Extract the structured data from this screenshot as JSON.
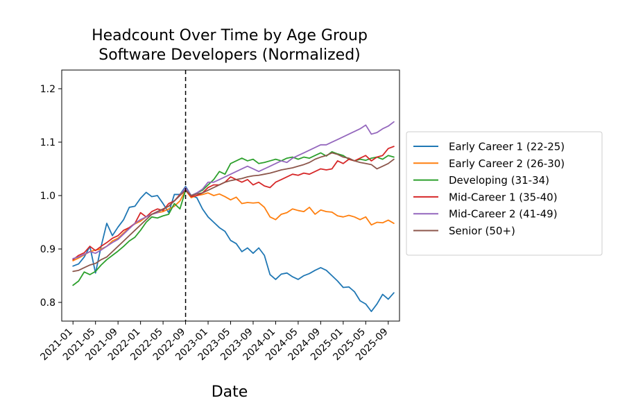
{
  "chart_data": {
    "type": "line",
    "title": "Headcount Over Time by Age Group",
    "subtitle": "Software Developers (Normalized)",
    "xlabel": "Date",
    "ylabel": "",
    "x_start": "2021-01",
    "xlim": [
      "2020-11",
      "2025-11"
    ],
    "ylim": [
      0.765,
      1.235
    ],
    "x_ticks": [
      "2021-01",
      "2021-05",
      "2021-09",
      "2022-01",
      "2022-05",
      "2022-09",
      "2023-01",
      "2023-05",
      "2023-09",
      "2024-01",
      "2024-05",
      "2024-09",
      "2025-01",
      "2025-05",
      "2025-09"
    ],
    "y_ticks": [
      0.8,
      0.9,
      1.0,
      1.1,
      1.2
    ],
    "y_tick_labels": [
      "0.8",
      "0.9",
      "1.0",
      "1.1",
      "1.2"
    ],
    "reference_line": {
      "x": "2022-09",
      "style": "dashed",
      "color": "#000000"
    },
    "grid": false,
    "legend_position": "outside-right",
    "series": [
      {
        "name": "Early Career 1 (22-25)",
        "color": "#1f77b4",
        "values": [
          0.868,
          0.872,
          0.885,
          0.905,
          0.855,
          0.905,
          0.948,
          0.925,
          0.941,
          0.955,
          0.978,
          0.98,
          0.995,
          1.006,
          0.998,
          1.0,
          0.985,
          0.968,
          1.002,
          1.002,
          1.017,
          1.0,
          0.996,
          0.975,
          0.96,
          0.95,
          0.94,
          0.933,
          0.916,
          0.91,
          0.895,
          0.902,
          0.892,
          0.902,
          0.888,
          0.852,
          0.843,
          0.853,
          0.855,
          0.848,
          0.843,
          0.85,
          0.854,
          0.86,
          0.865,
          0.86,
          0.85,
          0.84,
          0.828,
          0.829,
          0.82,
          0.803,
          0.797,
          0.783,
          0.797,
          0.815,
          0.806,
          0.818
        ]
      },
      {
        "name": "Early Career 2 (26-30)",
        "color": "#ff7f0e",
        "values": [
          0.878,
          0.883,
          0.889,
          0.895,
          0.898,
          0.9,
          0.905,
          0.915,
          0.92,
          0.93,
          0.94,
          0.947,
          0.952,
          0.96,
          0.965,
          0.968,
          0.97,
          0.975,
          0.98,
          0.99,
          1.01,
          0.996,
          1.0,
          1.002,
          1.005,
          1.0,
          1.003,
          0.998,
          0.992,
          0.997,
          0.985,
          0.987,
          0.986,
          0.987,
          0.978,
          0.96,
          0.955,
          0.965,
          0.968,
          0.975,
          0.972,
          0.97,
          0.978,
          0.965,
          0.973,
          0.97,
          0.969,
          0.962,
          0.96,
          0.963,
          0.96,
          0.955,
          0.96,
          0.945,
          0.95,
          0.949,
          0.954,
          0.948
        ]
      },
      {
        "name": "Developing (31-34)",
        "color": "#2ca02c",
        "values": [
          0.832,
          0.84,
          0.857,
          0.852,
          0.858,
          0.87,
          0.88,
          0.888,
          0.896,
          0.905,
          0.915,
          0.922,
          0.935,
          0.95,
          0.96,
          0.958,
          0.962,
          0.965,
          0.985,
          0.975,
          1.01,
          1.0,
          1.005,
          1.01,
          1.02,
          1.03,
          1.045,
          1.04,
          1.06,
          1.065,
          1.07,
          1.065,
          1.068,
          1.06,
          1.062,
          1.065,
          1.068,
          1.065,
          1.07,
          1.072,
          1.068,
          1.072,
          1.07,
          1.075,
          1.08,
          1.074,
          1.082,
          1.078,
          1.075,
          1.068,
          1.065,
          1.068,
          1.066,
          1.07,
          1.072,
          1.068,
          1.075,
          1.072
        ]
      },
      {
        "name": "Mid-Career 1 (35-40)",
        "color": "#d62728",
        "values": [
          0.88,
          0.888,
          0.893,
          0.905,
          0.897,
          0.905,
          0.912,
          0.92,
          0.925,
          0.935,
          0.94,
          0.948,
          0.968,
          0.96,
          0.97,
          0.975,
          0.972,
          0.985,
          0.99,
          1.002,
          1.01,
          0.998,
          1.0,
          1.005,
          1.015,
          1.02,
          1.02,
          1.025,
          1.035,
          1.03,
          1.025,
          1.03,
          1.02,
          1.025,
          1.018,
          1.015,
          1.025,
          1.03,
          1.035,
          1.04,
          1.038,
          1.042,
          1.04,
          1.045,
          1.05,
          1.048,
          1.05,
          1.065,
          1.06,
          1.068,
          1.065,
          1.07,
          1.075,
          1.065,
          1.072,
          1.075,
          1.088,
          1.092
        ]
      },
      {
        "name": "Mid-Career 2 (41-49)",
        "color": "#9467bd",
        "values": [
          0.882,
          0.885,
          0.89,
          0.895,
          0.892,
          0.898,
          0.905,
          0.912,
          0.918,
          0.928,
          0.938,
          0.948,
          0.955,
          0.96,
          0.965,
          0.968,
          0.975,
          0.98,
          0.99,
          1.0,
          1.015,
          1.0,
          1.005,
          1.012,
          1.025,
          1.025,
          1.03,
          1.035,
          1.04,
          1.045,
          1.05,
          1.055,
          1.05,
          1.045,
          1.05,
          1.055,
          1.06,
          1.065,
          1.062,
          1.07,
          1.075,
          1.08,
          1.085,
          1.09,
          1.095,
          1.095,
          1.1,
          1.105,
          1.11,
          1.115,
          1.12,
          1.125,
          1.132,
          1.115,
          1.118,
          1.125,
          1.13,
          1.138
        ]
      },
      {
        "name": "Senior (50+)",
        "color": "#8c564b",
        "values": [
          0.858,
          0.86,
          0.865,
          0.87,
          0.873,
          0.88,
          0.885,
          0.895,
          0.905,
          0.915,
          0.925,
          0.935,
          0.945,
          0.955,
          0.965,
          0.97,
          0.975,
          0.98,
          0.99,
          1.0,
          1.01,
          1.0,
          1.003,
          1.005,
          1.01,
          1.015,
          1.02,
          1.025,
          1.028,
          1.03,
          1.032,
          1.035,
          1.037,
          1.038,
          1.04,
          1.042,
          1.045,
          1.048,
          1.05,
          1.052,
          1.055,
          1.058,
          1.062,
          1.068,
          1.072,
          1.075,
          1.08,
          1.077,
          1.072,
          1.07,
          1.065,
          1.062,
          1.06,
          1.058,
          1.05,
          1.055,
          1.06,
          1.068
        ]
      }
    ]
  }
}
